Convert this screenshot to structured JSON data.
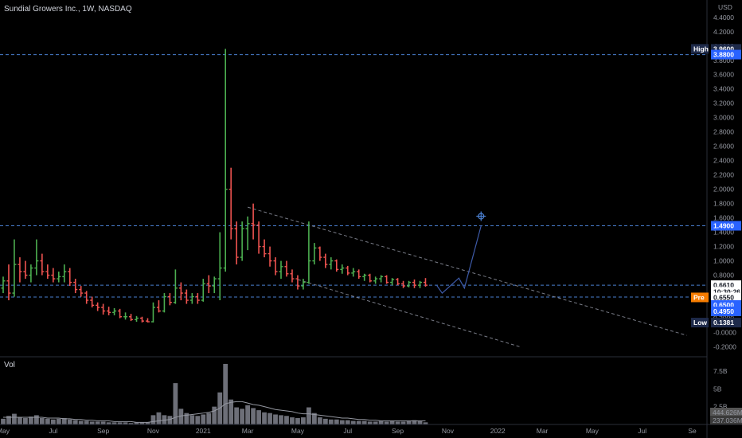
{
  "header": {
    "title": "Sundial Growers Inc., 1W, NASDAQ",
    "currency": "USD",
    "volume_label": "Vol"
  },
  "colors": {
    "up": "#26a69a",
    "up_bar": "#4caf50",
    "down": "#ef5350",
    "level_line": "#4a7fd0",
    "trend_line": "#787b86",
    "projection": "#3d5aa8",
    "volume": "#6d6f78",
    "volume_ma": "#9598a1",
    "tag_blue": "#2962ff",
    "tag_dark": "#1e2a4a",
    "tag_orange": "#f57c00"
  },
  "price_axis": {
    "ticks": [
      "4.4000",
      "4.2000",
      "4.0000",
      "3.8000",
      "3.6000",
      "3.4000",
      "3.2000",
      "3.0000",
      "2.8000",
      "2.6000",
      "2.4000",
      "2.2000",
      "2.0000",
      "1.8000",
      "1.6000",
      "1.4000",
      "1.2000",
      "1.0000",
      "0.8000",
      "0.6000",
      "0.4000",
      "0.2000",
      "-0.0000",
      "-0.2000"
    ],
    "ylim": [
      -0.25,
      4.42
    ],
    "tags": [
      {
        "label": "High",
        "value_text": "3.9600",
        "y": 3.96,
        "style": "dark"
      },
      {
        "label": "",
        "value_text": "3.8800",
        "y": 3.88,
        "style": "blue"
      },
      {
        "label": "",
        "value_text": "1.4900",
        "y": 1.49,
        "style": "blue"
      },
      {
        "label": "",
        "value_text": "0.6610",
        "y": 0.661,
        "style": "white"
      },
      {
        "label": "",
        "value_text": "10:30:26",
        "y": 0.57,
        "style": "white"
      },
      {
        "label": "Pre",
        "value_text": "0.6550",
        "y": 0.49,
        "style": "orange"
      },
      {
        "label": "",
        "value_text": "0.6500",
        "y": 0.385,
        "style": "blue"
      },
      {
        "label": "",
        "value_text": "0.4950",
        "y": 0.295,
        "style": "blue"
      },
      {
        "label": "Low",
        "value_text": "0.1381",
        "y": 0.1381,
        "style": "dark"
      }
    ]
  },
  "volume_axis": {
    "ticks": [
      "7.5B",
      "5B",
      "2.5B"
    ],
    "values": [
      7.5,
      5,
      2.5
    ],
    "ylim": [
      0,
      9.5
    ],
    "tags": [
      "444.626M",
      "237.036M"
    ]
  },
  "time_axis": {
    "labels": [
      "May",
      "Jul",
      "Sep",
      "Nov",
      "2021",
      "Mar",
      "May",
      "Jul",
      "Sep",
      "Nov",
      "2022",
      "Mar",
      "May",
      "Jul",
      "Se"
    ],
    "label_weeks": [
      0,
      9,
      18,
      27,
      36,
      44,
      53,
      62,
      71,
      80,
      89,
      97,
      106,
      115,
      124
    ]
  },
  "chart_data": {
    "type": "ohlc",
    "title": "Sundial Growers Inc., 1W, NASDAQ",
    "ylabel": "USD",
    "interval": "1W",
    "first_bar": "May 2020",
    "series": [
      {
        "name": "price",
        "ohlc": [
          [
            0.62,
            0.78,
            0.55,
            0.72
          ],
          [
            0.72,
            0.95,
            0.45,
            0.55
          ],
          [
            0.55,
            1.3,
            0.5,
            0.95
          ],
          [
            0.95,
            1.05,
            0.7,
            0.85
          ],
          [
            0.85,
            1.0,
            0.75,
            0.8
          ],
          [
            0.8,
            0.95,
            0.7,
            0.9
          ],
          [
            0.9,
            1.3,
            0.8,
            1.0
          ],
          [
            1.0,
            1.1,
            0.8,
            0.85
          ],
          [
            0.85,
            0.95,
            0.75,
            0.8
          ],
          [
            0.8,
            0.9,
            0.7,
            0.75
          ],
          [
            0.75,
            0.85,
            0.7,
            0.78
          ],
          [
            0.78,
            0.95,
            0.7,
            0.85
          ],
          [
            0.85,
            0.9,
            0.65,
            0.7
          ],
          [
            0.7,
            0.75,
            0.55,
            0.6
          ],
          [
            0.6,
            0.65,
            0.5,
            0.55
          ],
          [
            0.55,
            0.58,
            0.4,
            0.45
          ],
          [
            0.45,
            0.5,
            0.35,
            0.38
          ],
          [
            0.38,
            0.42,
            0.3,
            0.35
          ],
          [
            0.35,
            0.4,
            0.25,
            0.3
          ],
          [
            0.3,
            0.36,
            0.24,
            0.28
          ],
          [
            0.28,
            0.34,
            0.24,
            0.3
          ],
          [
            0.3,
            0.33,
            0.2,
            0.22
          ],
          [
            0.22,
            0.28,
            0.18,
            0.22
          ],
          [
            0.22,
            0.26,
            0.16,
            0.18
          ],
          [
            0.18,
            0.23,
            0.15,
            0.2
          ],
          [
            0.2,
            0.22,
            0.14,
            0.16
          ],
          [
            0.16,
            0.2,
            0.14,
            0.15
          ],
          [
            0.15,
            0.42,
            0.14,
            0.35
          ],
          [
            0.35,
            0.45,
            0.28,
            0.3
          ],
          [
            0.3,
            0.55,
            0.28,
            0.5
          ],
          [
            0.5,
            0.55,
            0.38,
            0.42
          ],
          [
            0.42,
            0.88,
            0.4,
            0.62
          ],
          [
            0.62,
            0.7,
            0.45,
            0.55
          ],
          [
            0.55,
            0.6,
            0.4,
            0.45
          ],
          [
            0.45,
            0.55,
            0.4,
            0.5
          ],
          [
            0.5,
            0.55,
            0.4,
            0.45
          ],
          [
            0.45,
            0.75,
            0.43,
            0.68
          ],
          [
            0.68,
            0.8,
            0.55,
            0.65
          ],
          [
            0.65,
            0.78,
            0.55,
            0.75
          ],
          [
            0.75,
            1.4,
            0.45,
            0.9
          ],
          [
            0.9,
            3.96,
            0.85,
            2.0
          ],
          [
            2.0,
            2.3,
            1.3,
            1.45
          ],
          [
            1.45,
            1.55,
            0.95,
            1.05
          ],
          [
            1.05,
            1.55,
            1.0,
            1.45
          ],
          [
            1.45,
            1.62,
            1.15,
            1.52
          ],
          [
            1.52,
            1.8,
            1.3,
            1.5
          ],
          [
            1.5,
            1.55,
            1.1,
            1.2
          ],
          [
            1.2,
            1.3,
            1.05,
            1.1
          ],
          [
            1.1,
            1.2,
            0.92,
            1.0
          ],
          [
            1.0,
            1.05,
            0.8,
            0.85
          ],
          [
            0.85,
            1.0,
            0.75,
            0.92
          ],
          [
            0.92,
            1.0,
            0.78,
            0.82
          ],
          [
            0.82,
            0.88,
            0.7,
            0.75
          ],
          [
            0.75,
            0.8,
            0.6,
            0.65
          ],
          [
            0.65,
            0.75,
            0.6,
            0.7
          ],
          [
            0.7,
            1.55,
            0.68,
            1.0
          ],
          [
            1.0,
            1.25,
            0.95,
            1.18
          ],
          [
            1.18,
            1.2,
            1.0,
            1.05
          ],
          [
            1.05,
            1.1,
            0.9,
            0.95
          ],
          [
            0.95,
            1.05,
            0.88,
            1.0
          ],
          [
            1.0,
            1.02,
            0.85,
            0.88
          ],
          [
            0.88,
            0.95,
            0.82,
            0.9
          ],
          [
            0.9,
            0.93,
            0.8,
            0.83
          ],
          [
            0.83,
            0.9,
            0.78,
            0.85
          ],
          [
            0.85,
            0.88,
            0.75,
            0.78
          ],
          [
            0.78,
            0.82,
            0.72,
            0.8
          ],
          [
            0.8,
            0.82,
            0.7,
            0.72
          ],
          [
            0.72,
            0.78,
            0.68,
            0.75
          ],
          [
            0.75,
            0.8,
            0.7,
            0.78
          ],
          [
            0.78,
            0.8,
            0.68,
            0.7
          ],
          [
            0.7,
            0.76,
            0.66,
            0.74
          ],
          [
            0.74,
            0.76,
            0.66,
            0.68
          ],
          [
            0.68,
            0.72,
            0.62,
            0.65
          ],
          [
            0.65,
            0.72,
            0.63,
            0.7
          ],
          [
            0.7,
            0.74,
            0.62,
            0.66
          ],
          [
            0.66,
            0.72,
            0.62,
            0.7
          ],
          [
            0.7,
            0.76,
            0.64,
            0.66
          ]
        ]
      },
      {
        "name": "volume",
        "unit": "B",
        "values": [
          0.8,
          1.2,
          1.5,
          1.0,
          0.9,
          1.1,
          1.3,
          0.9,
          0.8,
          0.7,
          0.8,
          0.9,
          0.7,
          0.6,
          0.5,
          0.5,
          0.4,
          0.4,
          0.4,
          0.3,
          0.3,
          0.3,
          0.3,
          0.2,
          0.3,
          0.3,
          0.3,
          1.3,
          1.7,
          1.3,
          1.2,
          5.8,
          2.2,
          1.6,
          1.3,
          1.2,
          1.4,
          1.6,
          2.5,
          4.5,
          8.5,
          3.5,
          2.4,
          2.2,
          2.7,
          2.3,
          2.0,
          1.7,
          1.6,
          1.4,
          1.3,
          1.2,
          1.0,
          0.9,
          1.0,
          2.4,
          1.6,
          1.0,
          0.8,
          0.7,
          0.7,
          0.6,
          0.6,
          0.5,
          0.5,
          0.5,
          0.4,
          0.4,
          0.5,
          0.4,
          0.5,
          0.4,
          0.4,
          0.5,
          0.6,
          0.5,
          0.3
        ]
      },
      {
        "name": "volume_ma",
        "unit": "B",
        "values": [
          1.0,
          1.0,
          1.0,
          1.0,
          1.0,
          1.0,
          1.0,
          1.0,
          0.9,
          0.9,
          0.9,
          0.8,
          0.8,
          0.7,
          0.7,
          0.6,
          0.6,
          0.5,
          0.5,
          0.5,
          0.4,
          0.4,
          0.4,
          0.4,
          0.3,
          0.3,
          0.3,
          0.4,
          0.5,
          0.6,
          0.7,
          1.0,
          1.2,
          1.3,
          1.4,
          1.5,
          1.6,
          1.7,
          1.9,
          2.3,
          2.9,
          3.1,
          3.2,
          3.2,
          3.0,
          2.8,
          2.7,
          2.5,
          2.3,
          2.1,
          2.0,
          1.9,
          1.8,
          1.6,
          1.5,
          1.5,
          1.4,
          1.3,
          1.2,
          1.1,
          1.0,
          0.9,
          0.9,
          0.8,
          0.7,
          0.7,
          0.6,
          0.6,
          0.5,
          0.5,
          0.5,
          0.5,
          0.5,
          0.5,
          0.5,
          0.5,
          0.5
        ]
      }
    ],
    "horizontal_levels": [
      3.88,
      1.49,
      0.661,
      0.495
    ],
    "trend_lines": [
      {
        "from": [
          44,
          1.75
        ],
        "to": [
          123,
          -0.04
        ]
      },
      {
        "from": [
          53,
          0.74
        ],
        "to": [
          93,
          -0.2
        ]
      }
    ],
    "projection": [
      [
        78,
        0.66
      ],
      [
        79,
        0.55
      ],
      [
        82,
        0.76
      ],
      [
        83,
        0.62
      ],
      [
        86,
        1.49
      ]
    ],
    "grid": false
  }
}
